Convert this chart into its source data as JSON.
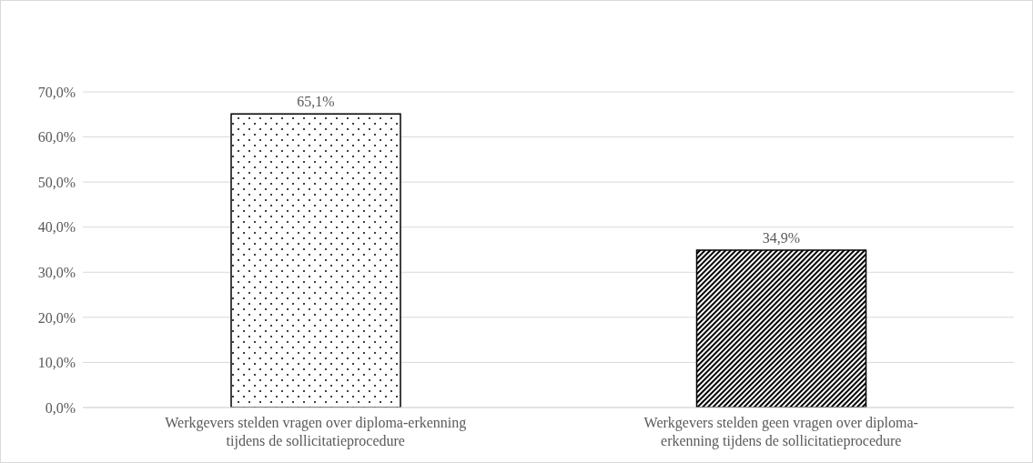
{
  "chart_data": {
    "type": "bar",
    "categories": [
      "Werkgevers stelden vragen over diploma-erkenning tijdens de sollicitatieprocedure",
      "Werkgevers stelden geen vragen over diploma-erkenning tijdens de sollicitatieprocedure"
    ],
    "values": [
      65.1,
      34.9
    ],
    "value_labels": [
      "65,1%",
      "34,9%"
    ],
    "colors": [
      "#000000",
      "#000000"
    ],
    "ylim": [
      0,
      70
    ],
    "yticks": [
      {
        "value": 0,
        "label": "0,0%"
      },
      {
        "value": 10,
        "label": "10,0%"
      },
      {
        "value": 20,
        "label": "20,0%"
      },
      {
        "value": 30,
        "label": "30,0%"
      },
      {
        "value": 40,
        "label": "40,0%"
      },
      {
        "value": 50,
        "label": "50,0%"
      },
      {
        "value": 60,
        "label": "60,0%"
      },
      {
        "value": 70,
        "label": "70,0%"
      }
    ],
    "grid": "y"
  }
}
